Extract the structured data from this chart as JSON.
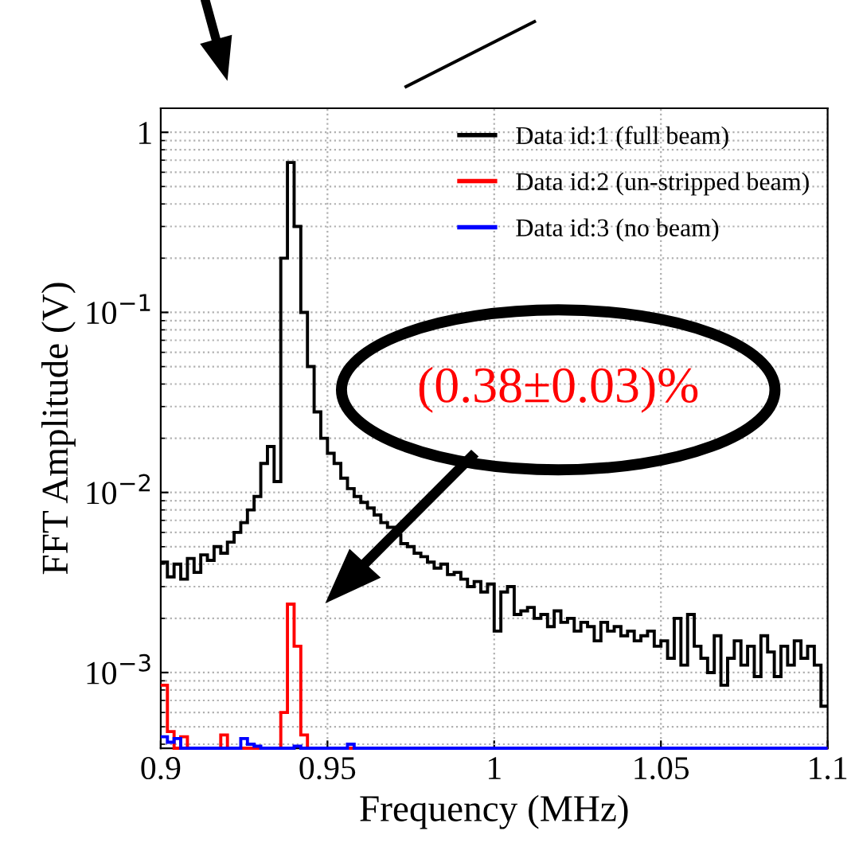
{
  "chart_data": {
    "type": "histogram",
    "xlabel": "Frequency (MHz)",
    "ylabel": "FFT Amplitude (V)",
    "bins": [
      0.9,
      0.902,
      0.904,
      0.906,
      0.908,
      0.91,
      0.912,
      0.914,
      0.916,
      0.918,
      0.92,
      0.922,
      0.924,
      0.926,
      0.928,
      0.93,
      0.932,
      0.934,
      0.936,
      0.938,
      0.94,
      0.942,
      0.944,
      0.946,
      0.948,
      0.95,
      0.952,
      0.954,
      0.956,
      0.958,
      0.96,
      0.962,
      0.964,
      0.966,
      0.968,
      0.97,
      0.972,
      0.974,
      0.976,
      0.978,
      0.98,
      0.982,
      0.984,
      0.986,
      0.988,
      0.99,
      0.992,
      0.994,
      0.996,
      0.998,
      1.0,
      1.002,
      1.004,
      1.006,
      1.008,
      1.01,
      1.012,
      1.014,
      1.016,
      1.018,
      1.02,
      1.022,
      1.024,
      1.026,
      1.028,
      1.03,
      1.032,
      1.034,
      1.036,
      1.038,
      1.04,
      1.042,
      1.044,
      1.046,
      1.048,
      1.05,
      1.052,
      1.054,
      1.056,
      1.058,
      1.06,
      1.062,
      1.064,
      1.066,
      1.068,
      1.07,
      1.072,
      1.074,
      1.076,
      1.078,
      1.08,
      1.082,
      1.084,
      1.086,
      1.088,
      1.09,
      1.092,
      1.094,
      1.096,
      1.098,
      1.1
    ],
    "series": [
      {
        "name": "Data id:1 (full beam)",
        "color": "#000000",
        "values": [
          0.0041,
          0.0034,
          0.004,
          0.0033,
          0.0043,
          0.0036,
          0.0045,
          0.0042,
          0.005,
          0.0046,
          0.0053,
          0.006,
          0.0068,
          0.008,
          0.0095,
          0.0145,
          0.018,
          0.0115,
          0.2,
          0.68,
          0.3,
          0.1,
          0.05,
          0.028,
          0.02,
          0.0165,
          0.0145,
          0.012,
          0.0105,
          0.0095,
          0.0088,
          0.0082,
          0.0075,
          0.0068,
          0.0064,
          0.0058,
          0.0052,
          0.005,
          0.0046,
          0.0044,
          0.0041,
          0.0038,
          0.004,
          0.0035,
          0.0036,
          0.0033,
          0.003,
          0.0032,
          0.0028,
          0.0031,
          0.0017,
          0.0028,
          0.003,
          0.0021,
          0.0022,
          0.0023,
          0.002,
          0.0021,
          0.0018,
          0.0022,
          0.0019,
          0.002,
          0.0017,
          0.0019,
          0.0018,
          0.0015,
          0.0019,
          0.0017,
          0.0018,
          0.0016,
          0.0017,
          0.0015,
          0.0016,
          0.0017,
          0.0014,
          0.0015,
          0.0012,
          0.002,
          0.0011,
          0.0021,
          0.0014,
          0.0012,
          0.001,
          0.0016,
          0.00085,
          0.0012,
          0.0015,
          0.0011,
          0.0014,
          0.00095,
          0.0016,
          0.0013,
          0.00095,
          0.0014,
          0.0011,
          0.0015,
          0.0012,
          0.0014,
          0.0011,
          0.00065
        ]
      },
      {
        "name": "Data id:2 (un-stripped beam)",
        "color": "#ff0000",
        "values": [
          0.00085,
          0.00047,
          null,
          0.00044,
          null,
          null,
          null,
          null,
          null,
          0.00045,
          null,
          null,
          null,
          null,
          null,
          null,
          null,
          null,
          0.0006,
          0.0024,
          0.0014,
          0.00045,
          null,
          null,
          null,
          null,
          null,
          null,
          null,
          null,
          null,
          null,
          null,
          null,
          null,
          null,
          null,
          null,
          null,
          null,
          null,
          null,
          null,
          null,
          null,
          null,
          null,
          null,
          null,
          null,
          null,
          null,
          null,
          null,
          null,
          null,
          null,
          null,
          null,
          null,
          null,
          null,
          null,
          null,
          null,
          null,
          null,
          null,
          null,
          null,
          null,
          null,
          null,
          null,
          null,
          null,
          null,
          null,
          null,
          null,
          null,
          null,
          null,
          null,
          null,
          null,
          null,
          null,
          null,
          null,
          null,
          null,
          null,
          null,
          null,
          null,
          null,
          null,
          null,
          null
        ]
      },
      {
        "name": "Data id:3 (no beam)",
        "color": "#0000ff",
        "values": [
          0.00044,
          0.00041,
          0.00043,
          null,
          null,
          null,
          null,
          null,
          null,
          null,
          null,
          null,
          0.00043,
          0.0004,
          0.00039,
          null,
          null,
          null,
          null,
          null,
          0.00039,
          null,
          null,
          null,
          null,
          null,
          null,
          null,
          0.0004,
          null,
          null,
          null,
          null,
          null,
          null,
          null,
          null,
          null,
          null,
          null,
          null,
          null,
          null,
          null,
          null,
          null,
          null,
          null,
          null,
          null,
          null,
          null,
          null,
          null,
          null,
          null,
          null,
          null,
          null,
          null,
          null,
          null,
          null,
          null,
          null,
          null,
          null,
          null,
          null,
          null,
          null,
          null,
          null,
          null,
          null,
          null,
          null,
          null,
          null,
          null,
          null,
          null,
          null,
          null,
          null,
          null,
          null,
          null,
          null,
          null,
          null,
          null,
          null,
          null,
          null,
          null,
          null,
          null,
          null,
          null
        ]
      }
    ],
    "log": "y",
    "xlim": [
      0.9,
      1.1
    ],
    "ylim": [
      0.00038,
      1.36
    ],
    "xticks": [
      0.9,
      0.95,
      {
        "value": 1,
        "label": "1"
      },
      1.05,
      1.1
    ],
    "yticks": [
      {
        "value": 1,
        "label": "1"
      },
      {
        "value": 0.1,
        "label": "10$^{−1}$"
      },
      {
        "value": 0.01,
        "label": "10$^{−2}$"
      },
      {
        "value": 0.001,
        "label": "10$^{−3}$"
      }
    ],
    "grid": true,
    "legend": "top right",
    "annotations": [
      "(0.38±0.03)%"
    ]
  }
}
